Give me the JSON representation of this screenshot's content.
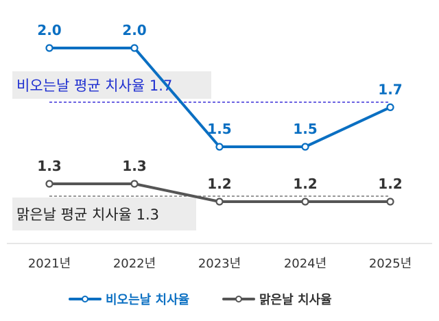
{
  "chart_data": {
    "type": "line",
    "categories": [
      "2021년",
      "2022년",
      "2023년",
      "2024년",
      "2025년"
    ],
    "series": [
      {
        "name": "비오는날 치사율",
        "values": [
          2.0,
          2.0,
          1.5,
          1.5,
          1.7
        ],
        "labels": [
          "2.0",
          "2.0",
          "1.5",
          "1.5",
          "1.7"
        ],
        "color": "#0a6fc2"
      },
      {
        "name": "맑은날 치사율",
        "values": [
          1.3,
          1.3,
          1.2,
          1.2,
          1.2
        ],
        "labels": [
          "1.3",
          "1.3",
          "1.2",
          "1.2",
          "1.2"
        ],
        "color": "#555555"
      }
    ],
    "reference_lines": [
      {
        "label": "비오는날 평균 치사율 1.7",
        "value": 1.7,
        "color": "#3a2fd8",
        "text_color": "#1f2fd0"
      },
      {
        "label": "맑은날 평균 치사율 1.3",
        "value": 1.3,
        "color": "#777777",
        "text_color": "#222222"
      }
    ],
    "title": "",
    "xlabel": "",
    "ylabel": "",
    "legend_position": "bottom",
    "grid": false
  }
}
